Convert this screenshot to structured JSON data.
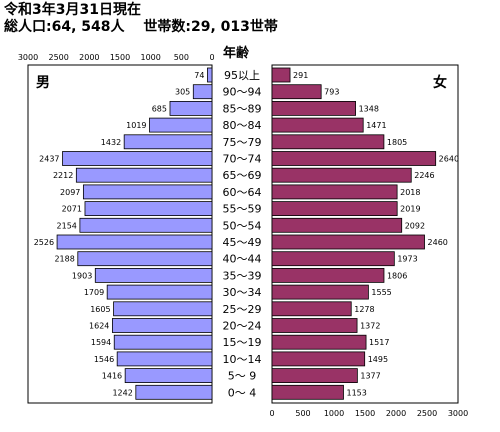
{
  "header": {
    "date_line": "令和3年3月31日現在",
    "totals_line": "総人口:64, 548人　 世帯数:29, 013世帯"
  },
  "chart_data": {
    "type": "bar",
    "orientation": "horizontal-pyramid",
    "center_title": "年齢",
    "male_label": "男",
    "female_label": "女",
    "age_groups": [
      "95以上",
      "90〜94",
      "85〜89",
      "80〜84",
      "75〜79",
      "70〜74",
      "65〜69",
      "60〜64",
      "55〜59",
      "50〜54",
      "45〜49",
      "40〜44",
      "35〜39",
      "30〜34",
      "25〜29",
      "20〜24",
      "15〜19",
      "10〜14",
      "5〜 9",
      "0〜 4"
    ],
    "series": [
      {
        "name": "男",
        "values": [
          74,
          305,
          685,
          1019,
          1432,
          2437,
          2212,
          2097,
          2071,
          2154,
          2526,
          2188,
          1903,
          1709,
          1605,
          1624,
          1594,
          1546,
          1416,
          1242
        ]
      },
      {
        "name": "女",
        "values": [
          291,
          793,
          1348,
          1471,
          1805,
          2640,
          2246,
          2018,
          2019,
          2092,
          2460,
          1973,
          1806,
          1555,
          1278,
          1372,
          1517,
          1495,
          1377,
          1153
        ]
      }
    ],
    "xlim": [
      0,
      3000
    ],
    "male_ticks": [
      "3000",
      "2500",
      "2000",
      "1500",
      "1000",
      "500",
      "0"
    ],
    "female_ticks": [
      "0",
      "500",
      "1000",
      "1500",
      "2000",
      "2500",
      "3000"
    ],
    "colors": {
      "male": "#9999ff",
      "female": "#993366",
      "border": "#000000"
    },
    "grid": false
  }
}
